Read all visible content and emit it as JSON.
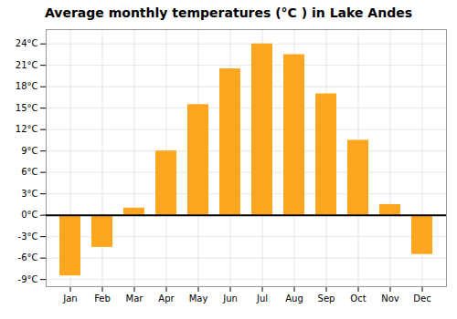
{
  "chart_data": {
    "type": "bar",
    "title": "Average monthly temperatures (°C ) in Lake Andes",
    "categories": [
      "Jan",
      "Feb",
      "Mar",
      "Apr",
      "May",
      "Jun",
      "Jul",
      "Aug",
      "Sep",
      "Oct",
      "Nov",
      "Dec"
    ],
    "values": [
      -8.5,
      -4.5,
      1.0,
      9.0,
      15.5,
      20.5,
      24.0,
      22.5,
      17.0,
      10.5,
      1.5,
      -5.5
    ],
    "color": "#FFA620",
    "ylim": [
      -10,
      26
    ],
    "yticks": [
      {
        "value": -9,
        "label": "-9°C"
      },
      {
        "value": -6,
        "label": "-6°C"
      },
      {
        "value": -3,
        "label": "-3°C"
      },
      {
        "value": 0,
        "label": "0°C"
      },
      {
        "value": 3,
        "label": "3°C"
      },
      {
        "value": 6,
        "label": "6°C"
      },
      {
        "value": 9,
        "label": "9°C"
      },
      {
        "value": 12,
        "label": "12°C"
      },
      {
        "value": 15,
        "label": "15°C"
      },
      {
        "value": 18,
        "label": "18°C"
      },
      {
        "value": 21,
        "label": "21°C"
      },
      {
        "value": 24,
        "label": "24°C"
      }
    ],
    "grid": true
  }
}
